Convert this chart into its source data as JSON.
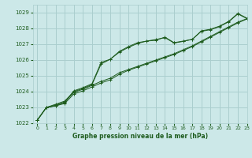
{
  "title": "Graphe pression niveau de la mer (hPa)",
  "bg_color": "#cce8e8",
  "grid_color": "#aacece",
  "line_color": "#1e5c1e",
  "ylim": [
    1022,
    1029.5
  ],
  "xlim": [
    -0.5,
    23
  ],
  "yticks": [
    1022,
    1023,
    1024,
    1025,
    1026,
    1027,
    1028,
    1029
  ],
  "xticks": [
    0,
    1,
    2,
    3,
    4,
    5,
    6,
    7,
    8,
    9,
    10,
    11,
    12,
    13,
    14,
    15,
    16,
    17,
    18,
    19,
    20,
    21,
    22,
    23
  ],
  "series": [
    [
      1022.2,
      1023.0,
      1023.1,
      1023.3,
      1024.05,
      1024.25,
      1024.5,
      1025.85,
      1026.05,
      1026.55,
      1026.85,
      1027.1,
      1027.2,
      1027.25,
      1027.45,
      1027.1,
      1027.2,
      1027.3,
      1027.85,
      1027.95,
      1028.15,
      1028.45,
      1028.95,
      1028.65
    ],
    [
      1022.2,
      1023.0,
      1023.1,
      1023.25,
      1023.85,
      1024.05,
      1024.3,
      1024.55,
      1024.75,
      1025.1,
      1025.35,
      1025.55,
      1025.75,
      1025.95,
      1026.15,
      1026.35,
      1026.6,
      1026.85,
      1027.15,
      1027.45,
      1027.75,
      1028.05,
      1028.35,
      1028.6
    ],
    [
      1022.2,
      1023.0,
      1023.15,
      1023.35,
      1023.95,
      1024.15,
      1024.4,
      1024.65,
      1024.85,
      1025.2,
      1025.4,
      1025.6,
      1025.8,
      1026.0,
      1026.2,
      1026.4,
      1026.65,
      1026.9,
      1027.2,
      1027.5,
      1027.8,
      1028.1,
      1028.4,
      1028.62
    ],
    [
      1022.2,
      1023.0,
      1023.2,
      1023.4,
      1024.0,
      1024.2,
      1024.45,
      1025.75,
      1026.05,
      1026.5,
      1026.8,
      1027.05,
      1027.2,
      1027.3,
      1027.42,
      1027.08,
      1027.18,
      1027.32,
      1027.82,
      1027.92,
      1028.12,
      1028.42,
      1028.92,
      1028.62
    ]
  ]
}
